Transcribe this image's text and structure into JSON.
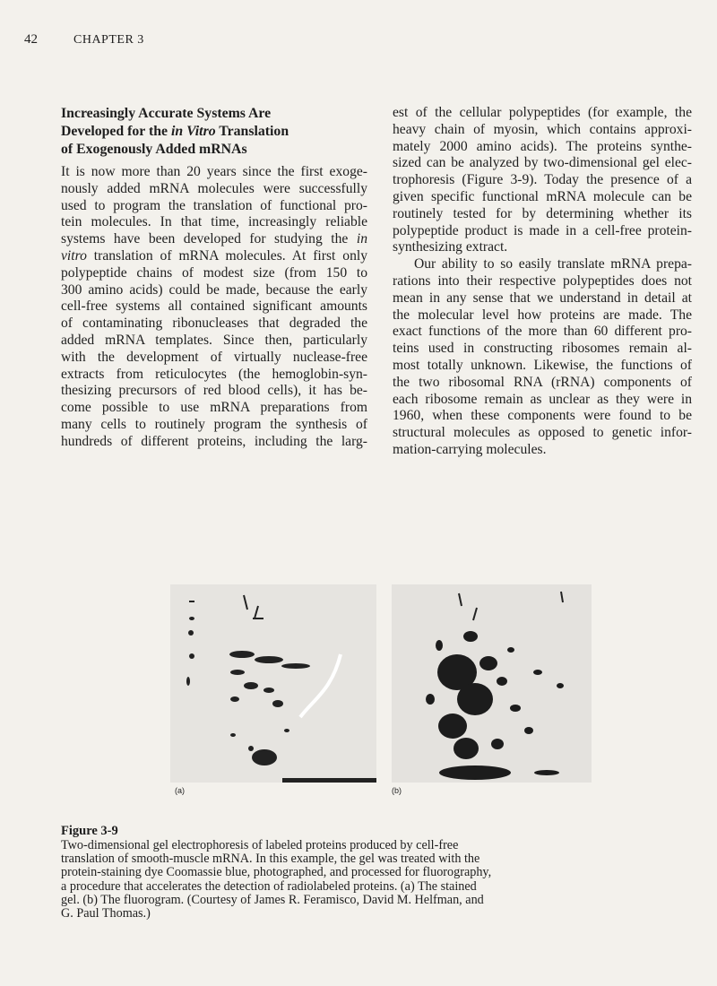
{
  "header": {
    "page_number": "42",
    "chapter": "CHAPTER 3"
  },
  "heading": {
    "lines": [
      "Increasingly Accurate Systems Are",
      [
        "Developed for the ",
        {
          "text": "in Vitro",
          "style": "italic"
        },
        " Translation"
      ],
      "of Exogenously Added mRNAs"
    ]
  },
  "left_column": {
    "paragraphs": [
      {
        "lines": [
          "It is now more than 20 years since the first exoge-",
          "nously added mRNA molecules were successfully",
          "used to program the translation of functional pro-",
          "tein molecules. In that time, increasingly reliable",
          [
            "systems have been developed for studying the ",
            {
              "text": "in",
              "style": "italic"
            }
          ],
          [
            {
              "text": "vitro",
              "style": "italic"
            },
            " translation of mRNA molecules. At first only"
          ],
          "polypeptide chains of modest size (from 150 to",
          "300 amino acids) could be made, because the early",
          "cell-free systems all contained significant amounts",
          "of contaminating ribonucleases that degraded the",
          "added mRNA templates. Since then, particularly",
          "with the development of virtually nuclease-free",
          "extracts from reticulocytes (the hemoglobin-syn-",
          "thesizing precursors of red blood cells), it has be-",
          "come possible to use mRNA preparations from",
          "many cells to routinely program the synthesis of",
          "hundreds of different proteins, including the larg-"
        ]
      }
    ]
  },
  "right_column": {
    "paragraphs": [
      {
        "lines": [
          "est of the cellular polypeptides (for example, the",
          "heavy chain of myosin, which contains approxi-",
          "mately 2000 amino acids). The proteins synthe-",
          "sized can be analyzed by two-dimensional gel elec-",
          "trophoresis (Figure 3-9). Today the presence of a",
          "given specific functional mRNA molecule can be",
          "routinely tested for by determining whether its",
          "polypeptide product is made in a cell-free protein-",
          "synthesizing extract."
        ]
      },
      {
        "lines": [
          "Our ability to so easily translate mRNA prepa-",
          "rations into their respective polypeptides does not",
          "mean in any sense that we understand in detail at",
          "the molecular level how proteins are made. The",
          "exact functions of the more than 60 different pro-",
          "teins used in constructing ribosomes remain al-",
          "most totally unknown. Likewise, the functions of",
          "the two ribosomal RNA (rRNA) components of",
          "each ribosome remain as unclear as they were in",
          "1960, when these components were found to be",
          "structural molecules as opposed to genetic infor-",
          "mation-carrying molecules."
        ]
      }
    ]
  },
  "figure": {
    "panel_labels": [
      "(a)",
      "(b)"
    ],
    "caption_title": "Figure 3-9",
    "caption_lines": [
      "Two-dimensional gel electrophoresis of labeled proteins produced by cell-free",
      "translation of smooth-muscle mRNA. In this example, the gel was treated with the",
      "protein-staining dye Coomassie blue, photographed, and processed for fluorography,",
      "a procedure that accelerates the detection of radiolabeled proteins. (a) The stained",
      "gel. (b) The fluorogram. (Courtesy of James R. Feramisco, David M. Helfman, and",
      "G. Paul Thomas.)"
    ]
  }
}
